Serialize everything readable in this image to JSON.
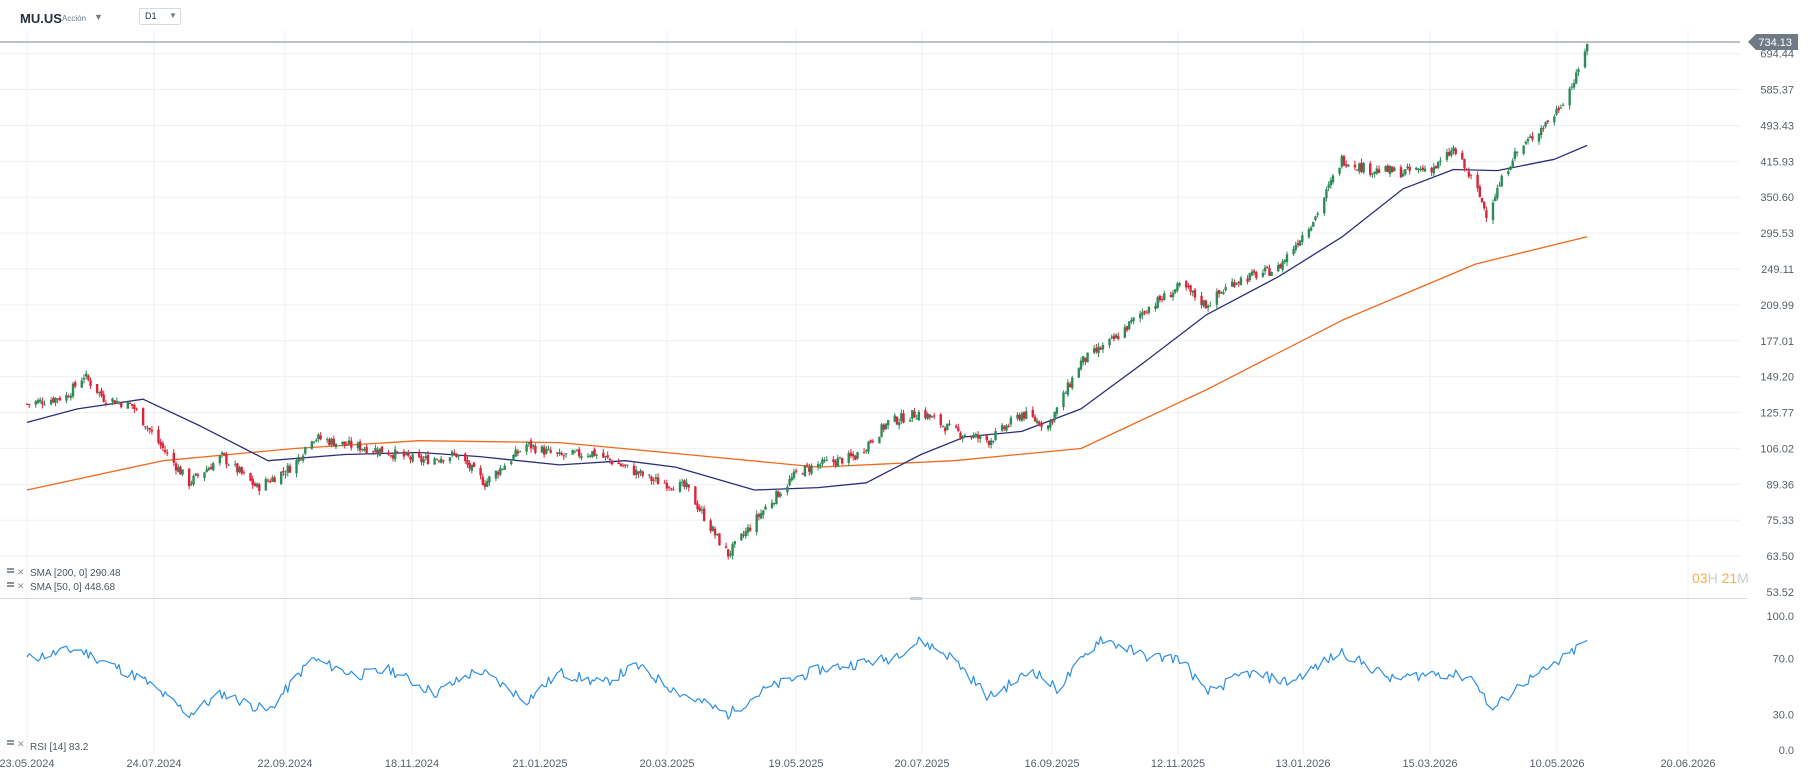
{
  "header": {
    "symbol": "MU.US",
    "instrument_type": "Acción",
    "timeframe": "D1"
  },
  "timer": {
    "hours": "03",
    "hours_unit": "H",
    "minutes": "21",
    "minutes_unit": "M"
  },
  "colors": {
    "bull": "#2e8b57",
    "bear": "#d9263a",
    "sma200": "#f06a1e",
    "sma50": "#2b2f7a",
    "rsi": "#2b8fe3",
    "grid": "#eef0f3",
    "axis_text": "#55606b"
  },
  "chart_data": [
    {
      "type": "candlestick",
      "symbol": "MU.US",
      "scale": "log",
      "ylim": [
        53.52,
        770
      ],
      "y_ticks": [
        "53.52",
        "63.50",
        "75.33",
        "89.36",
        "106.02",
        "125.77",
        "149.20",
        "177.01",
        "209.99",
        "249.11",
        "295.53",
        "350.60",
        "415.93",
        "493.43",
        "585.37",
        "694.44"
      ],
      "x_ticks": [
        "23.05.2024",
        "24.07.2024",
        "22.09.2024",
        "18.11.2024",
        "21.01.2025",
        "20.03.2025",
        "19.05.2025",
        "20.07.2025",
        "16.09.2025",
        "12.11.2025",
        "13.01.2026",
        "15.03.2026",
        "10.05.2026",
        "20.06.2026"
      ],
      "last_price": "734.13",
      "price_path": [
        [
          "2024-05-23",
          131
        ],
        [
          "2024-06-10",
          136
        ],
        [
          "2024-06-18",
          150
        ],
        [
          "2024-06-27",
          135
        ],
        [
          "2024-07-10",
          130
        ],
        [
          "2024-07-24",
          106
        ],
        [
          "2024-08-05",
          90
        ],
        [
          "2024-08-20",
          102
        ],
        [
          "2024-09-05",
          88
        ],
        [
          "2024-09-22",
          98
        ],
        [
          "2024-09-30",
          112
        ],
        [
          "2024-10-15",
          108
        ],
        [
          "2024-11-01",
          105
        ],
        [
          "2024-11-18",
          100
        ],
        [
          "2024-12-05",
          103
        ],
        [
          "2024-12-18",
          90
        ],
        [
          "2025-01-06",
          108
        ],
        [
          "2025-01-21",
          102
        ],
        [
          "2025-02-05",
          104
        ],
        [
          "2025-02-20",
          97
        ],
        [
          "2025-03-05",
          91
        ],
        [
          "2025-03-20",
          88
        ],
        [
          "2025-04-04",
          68
        ],
        [
          "2025-04-08",
          64
        ],
        [
          "2025-04-25",
          80
        ],
        [
          "2025-05-10",
          95
        ],
        [
          "2025-05-19",
          98
        ],
        [
          "2025-06-05",
          102
        ],
        [
          "2025-06-20",
          120
        ],
        [
          "2025-07-05",
          126
        ],
        [
          "2025-07-20",
          115
        ],
        [
          "2025-08-05",
          110
        ],
        [
          "2025-08-20",
          125
        ],
        [
          "2025-09-01",
          118
        ],
        [
          "2025-09-16",
          160
        ],
        [
          "2025-10-01",
          178
        ],
        [
          "2025-10-15",
          205
        ],
        [
          "2025-11-01",
          230
        ],
        [
          "2025-11-12",
          210
        ],
        [
          "2025-11-25",
          235
        ],
        [
          "2025-12-15",
          250
        ],
        [
          "2026-01-01",
          320
        ],
        [
          "2026-01-13",
          420
        ],
        [
          "2026-01-25",
          400
        ],
        [
          "2026-02-10",
          395
        ],
        [
          "2026-02-25",
          405
        ],
        [
          "2026-03-05",
          440
        ],
        [
          "2026-03-15",
          370
        ],
        [
          "2026-03-20",
          325
        ],
        [
          "2026-04-01",
          425
        ],
        [
          "2026-04-20",
          520
        ],
        [
          "2026-04-30",
          620
        ],
        [
          "2026-05-05",
          734.13
        ]
      ]
    },
    {
      "type": "line",
      "name": "SMA [200, 0]",
      "value_label": "290.48",
      "color": "#f06a1e",
      "points": [
        [
          "2024-05-23",
          87
        ],
        [
          "2024-07-24",
          100
        ],
        [
          "2024-09-22",
          106
        ],
        [
          "2024-11-18",
          110
        ],
        [
          "2025-01-21",
          109
        ],
        [
          "2025-03-20",
          103
        ],
        [
          "2025-05-19",
          97
        ],
        [
          "2025-07-20",
          100
        ],
        [
          "2025-09-16",
          106
        ],
        [
          "2025-11-12",
          140
        ],
        [
          "2026-01-13",
          195
        ],
        [
          "2026-03-15",
          255
        ],
        [
          "2026-05-05",
          290.48
        ]
      ]
    },
    {
      "type": "line",
      "name": "SMA [50, 0]",
      "value_label": "448.68",
      "color": "#2b2f7a",
      "points": [
        [
          "2024-05-23",
          120
        ],
        [
          "2024-06-15",
          128
        ],
        [
          "2024-07-15",
          134
        ],
        [
          "2024-08-10",
          118
        ],
        [
          "2024-09-10",
          100
        ],
        [
          "2024-10-15",
          103
        ],
        [
          "2024-11-18",
          104
        ],
        [
          "2024-12-15",
          102
        ],
        [
          "2025-01-21",
          98
        ],
        [
          "2025-02-20",
          100
        ],
        [
          "2025-03-15",
          97
        ],
        [
          "2025-04-20",
          87
        ],
        [
          "2025-05-19",
          88
        ],
        [
          "2025-06-10",
          90
        ],
        [
          "2025-07-05",
          103
        ],
        [
          "2025-07-25",
          112
        ],
        [
          "2025-08-20",
          115
        ],
        [
          "2025-09-16",
          128
        ],
        [
          "2025-10-15",
          160
        ],
        [
          "2025-11-12",
          200
        ],
        [
          "2025-12-15",
          240
        ],
        [
          "2026-01-13",
          290
        ],
        [
          "2026-02-10",
          365
        ],
        [
          "2026-03-05",
          400
        ],
        [
          "2026-03-25",
          398
        ],
        [
          "2026-04-20",
          420
        ],
        [
          "2026-05-05",
          448.68
        ]
      ]
    },
    {
      "type": "line",
      "name": "RSI [14]",
      "value_label": "83.2",
      "ylim": [
        0,
        100
      ],
      "y_ticks": [
        "100.0",
        "70.0",
        "30.0",
        "0.0"
      ],
      "points": [
        [
          "2024-05-23",
          70
        ],
        [
          "2024-06-15",
          77
        ],
        [
          "2024-07-15",
          55
        ],
        [
          "2024-08-05",
          30
        ],
        [
          "2024-08-20",
          45
        ],
        [
          "2024-09-10",
          32
        ],
        [
          "2024-09-30",
          70
        ],
        [
          "2024-10-20",
          58
        ],
        [
          "2024-11-05",
          62
        ],
        [
          "2024-11-25",
          45
        ],
        [
          "2024-12-15",
          62
        ],
        [
          "2025-01-06",
          40
        ],
        [
          "2025-01-21",
          60
        ],
        [
          "2025-02-10",
          52
        ],
        [
          "2025-02-25",
          65
        ],
        [
          "2025-03-15",
          47
        ],
        [
          "2025-04-08",
          30
        ],
        [
          "2025-04-25",
          48
        ],
        [
          "2025-05-19",
          62
        ],
        [
          "2025-06-20",
          70
        ],
        [
          "2025-07-05",
          83
        ],
        [
          "2025-07-20",
          70
        ],
        [
          "2025-08-05",
          42
        ],
        [
          "2025-08-25",
          62
        ],
        [
          "2025-09-05",
          48
        ],
        [
          "2025-09-25",
          85
        ],
        [
          "2025-10-15",
          72
        ],
        [
          "2025-11-01",
          70
        ],
        [
          "2025-11-12",
          45
        ],
        [
          "2025-12-01",
          60
        ],
        [
          "2025-12-20",
          53
        ],
        [
          "2026-01-13",
          75
        ],
        [
          "2026-02-05",
          55
        ],
        [
          "2026-02-25",
          60
        ],
        [
          "2026-03-15",
          56
        ],
        [
          "2026-03-22",
          32
        ],
        [
          "2026-04-05",
          52
        ],
        [
          "2026-04-20",
          65
        ],
        [
          "2026-05-05",
          83.2
        ]
      ]
    }
  ],
  "legend": {
    "sma200": "SMA [200, 0] 290.48",
    "sma50": "SMA [50, 0] 448.68",
    "rsi": "RSI [14] 83.2"
  }
}
